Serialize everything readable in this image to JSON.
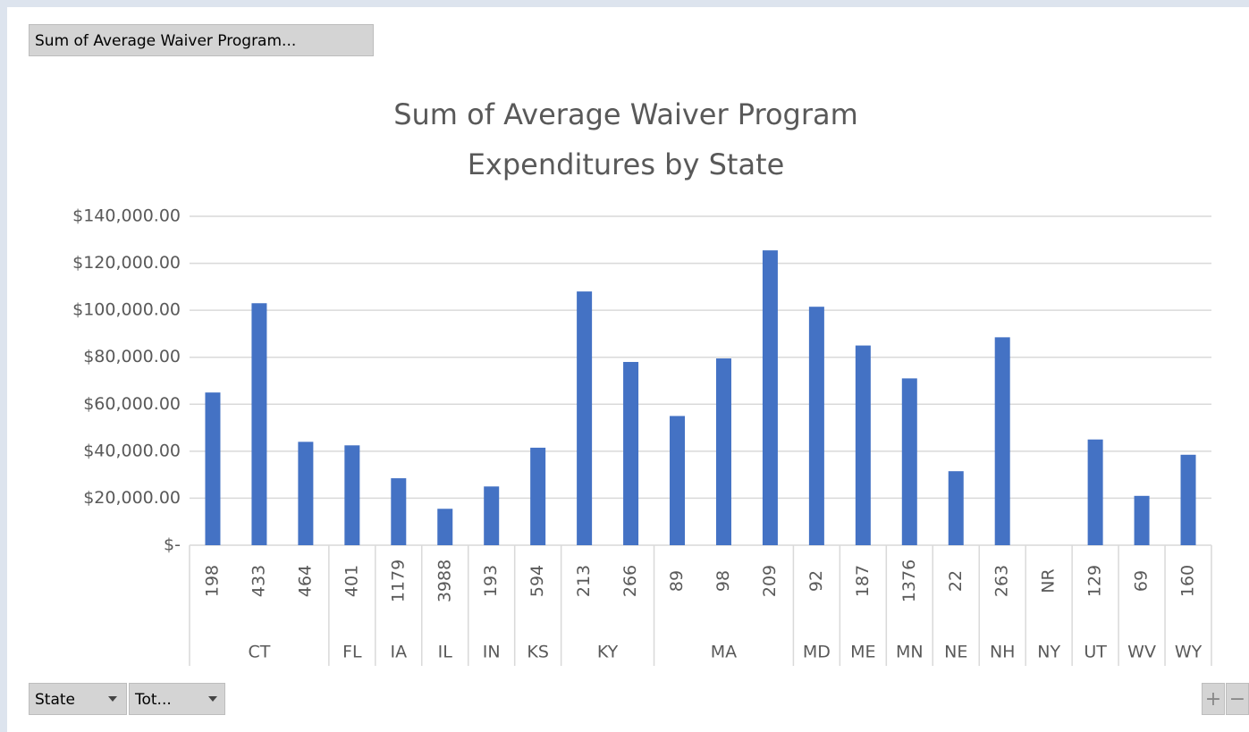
{
  "ui": {
    "field_button": "Sum of Average Waiver Program...",
    "filters": [
      "State",
      "Tot..."
    ],
    "zoom": [
      "+",
      "−"
    ]
  },
  "chart_data": {
    "type": "bar",
    "title": "Sum of Average Waiver Program Expenditures by State",
    "color": "#4472c4",
    "grid": true,
    "ylim": [
      0,
      140000
    ],
    "yticks": [
      {
        "value": 0,
        "label": "$-"
      },
      {
        "value": 20000,
        "label": "$20,000.00"
      },
      {
        "value": 40000,
        "label": "$40,000.00"
      },
      {
        "value": 60000,
        "label": "$60,000.00"
      },
      {
        "value": 80000,
        "label": "$80,000.00"
      },
      {
        "value": 100000,
        "label": "$100,000.00"
      },
      {
        "value": 120000,
        "label": "$120,000.00"
      },
      {
        "value": 140000,
        "label": "$140,000.00"
      }
    ],
    "groups": [
      {
        "name": "CT",
        "labels": [
          "198",
          "433",
          "464"
        ],
        "values": [
          65000,
          103000,
          44000
        ]
      },
      {
        "name": "FL",
        "labels": [
          "401"
        ],
        "values": [
          42500
        ]
      },
      {
        "name": "IA",
        "labels": [
          "1179"
        ],
        "values": [
          28500
        ]
      },
      {
        "name": "IL",
        "labels": [
          "3988"
        ],
        "values": [
          15500
        ]
      },
      {
        "name": "IN",
        "labels": [
          "193"
        ],
        "values": [
          25000
        ]
      },
      {
        "name": "KS",
        "labels": [
          "594"
        ],
        "values": [
          41500
        ]
      },
      {
        "name": "KY",
        "labels": [
          "213",
          "266"
        ],
        "values": [
          108000,
          78000
        ]
      },
      {
        "name": "MA",
        "labels": [
          "89",
          "98",
          "209"
        ],
        "values": [
          55000,
          79500,
          125500
        ]
      },
      {
        "name": "MD",
        "labels": [
          "92"
        ],
        "values": [
          101500
        ]
      },
      {
        "name": "ME",
        "labels": [
          "187"
        ],
        "values": [
          85000
        ]
      },
      {
        "name": "MN",
        "labels": [
          "1376"
        ],
        "values": [
          71000
        ]
      },
      {
        "name": "NE",
        "labels": [
          "22"
        ],
        "values": [
          31500
        ]
      },
      {
        "name": "NH",
        "labels": [
          "263"
        ],
        "values": [
          88500
        ]
      },
      {
        "name": "NY",
        "labels": [
          "NR"
        ],
        "values": [
          null
        ]
      },
      {
        "name": "UT",
        "labels": [
          "129"
        ],
        "values": [
          45000
        ]
      },
      {
        "name": "WV",
        "labels": [
          "69"
        ],
        "values": [
          21000
        ]
      },
      {
        "name": "WY",
        "labels": [
          "160"
        ],
        "values": [
          38500
        ]
      }
    ]
  }
}
